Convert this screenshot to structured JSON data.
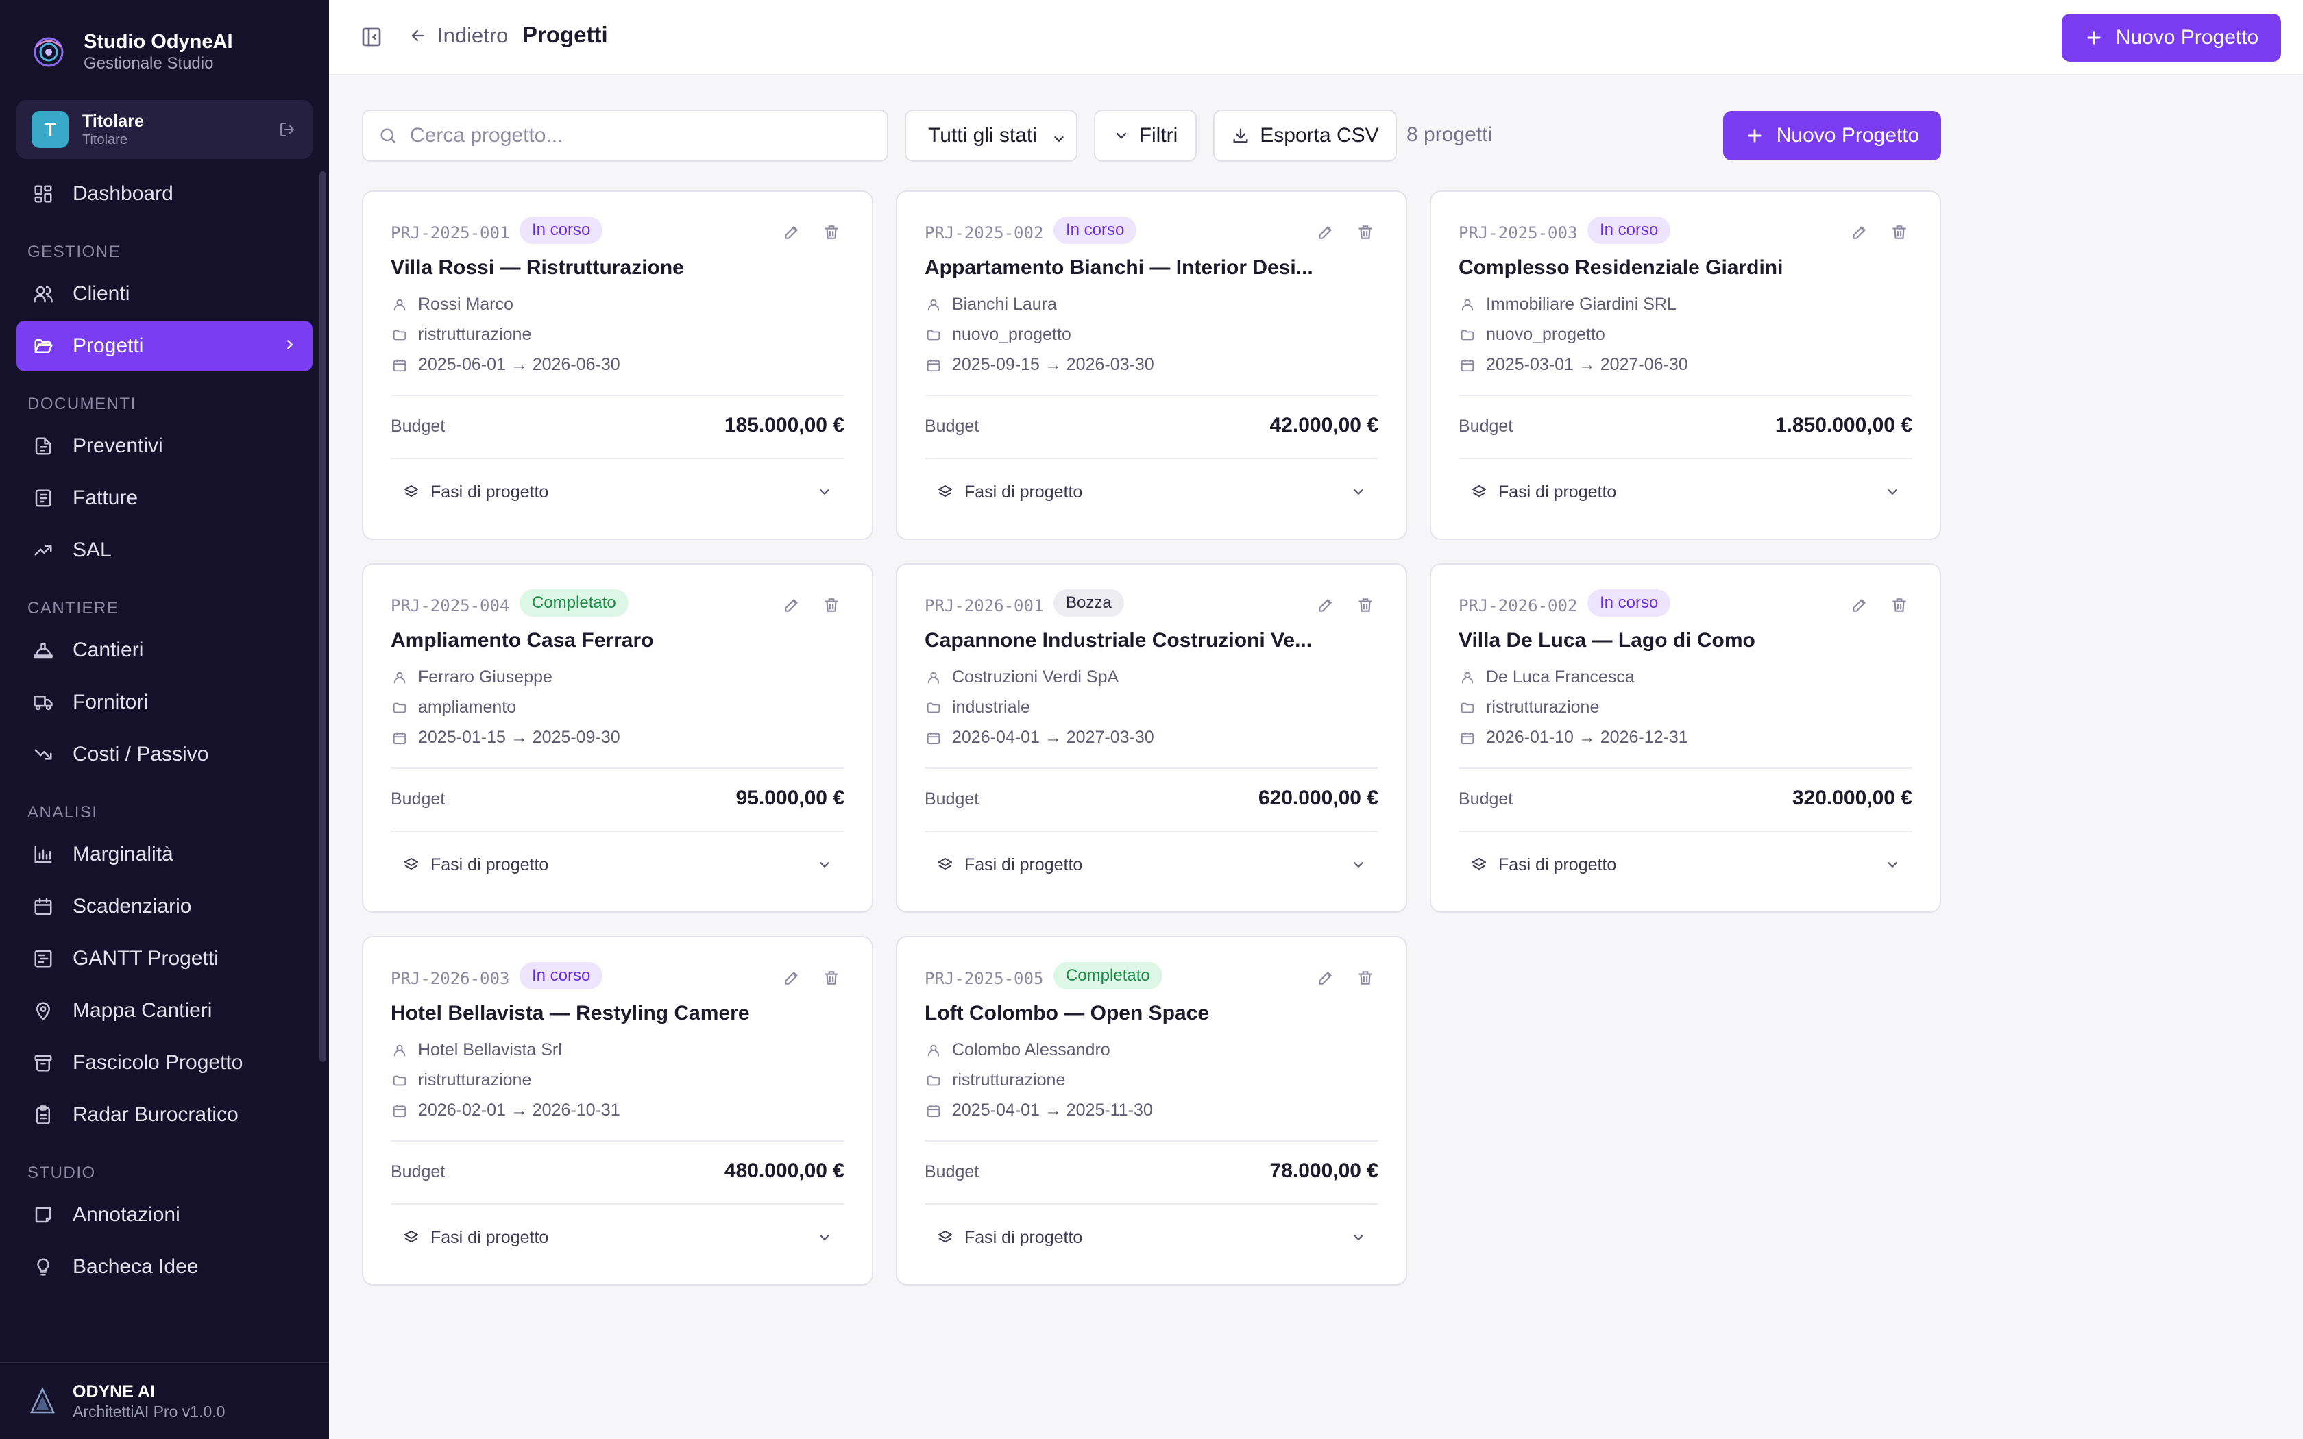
{
  "brand": {
    "name": "Studio OdyneAI",
    "subtitle": "Gestionale Studio"
  },
  "user": {
    "initial": "T",
    "name": "Titolare",
    "role": "Titolare"
  },
  "nav": {
    "dashboard": "Dashboard",
    "sections": {
      "gestione": "GESTIONE",
      "documenti": "DOCUMENTI",
      "cantieri": "CANTIERE",
      "analisi": "ANALISI",
      "studio": "STUDIO"
    },
    "items": {
      "clienti": "Clienti",
      "progetti": "Progetti",
      "preventivi": "Preventivi",
      "fatture": "Fatture",
      "sal": "SAL",
      "cantieri": "Cantieri",
      "fornitori": "Fornitori",
      "costi": "Costi / Passivo",
      "marginalita": "Marginalità",
      "scadenziario": "Scadenziario",
      "gantt": "GANTT Progetti",
      "mappa": "Mappa Cantieri",
      "fascicolo": "Fascicolo Progetto",
      "radar": "Radar Burocratico",
      "annotazioni": "Annotazioni",
      "bacheca": "Bacheca Idee"
    }
  },
  "footer": {
    "title": "ODYNE AI",
    "subtitle": "ArchitettiAI Pro v1.0.0"
  },
  "header": {
    "back_label": "Indietro",
    "title": "Progetti",
    "new_project": "Nuovo Progetto"
  },
  "toolbar": {
    "search_placeholder": "Cerca progetto...",
    "status_filter": "Tutti gli stati",
    "filters_label": "Filtri",
    "export_label": "Esporta CSV",
    "count": "8 progetti",
    "new_project": "Nuovo Progetto"
  },
  "phases_label": "Fasi di progetto",
  "budget_label": "Budget",
  "colors": {
    "accent": "#7a3cf0",
    "sidebar": "#15112b",
    "in_progress": "#6c2fe0",
    "completed": "#1f8a47"
  },
  "projects": [
    {
      "code": "PRJ-2025-001",
      "status": "In corso",
      "status_kind": "inprogress",
      "title": "Villa Rossi — Ristrutturazione",
      "client": "Rossi Marco",
      "type": "ristrutturazione",
      "dates": "2025-06-01 → 2026-06-30",
      "budget": "185.000,00 €"
    },
    {
      "code": "PRJ-2025-002",
      "status": "In corso",
      "status_kind": "inprogress",
      "title": "Appartamento Bianchi — Interior Desi...",
      "client": "Bianchi Laura",
      "type": "nuovo_progetto",
      "dates": "2025-09-15 → 2026-03-30",
      "budget": "42.000,00 €"
    },
    {
      "code": "PRJ-2025-003",
      "status": "In corso",
      "status_kind": "inprogress",
      "title": "Complesso Residenziale Giardini",
      "client": "Immobiliare Giardini SRL",
      "type": "nuovo_progetto",
      "dates": "2025-03-01 → 2027-06-30",
      "budget": "1.850.000,00 €"
    },
    {
      "code": "PRJ-2025-004",
      "status": "Completato",
      "status_kind": "done",
      "title": "Ampliamento Casa Ferraro",
      "client": "Ferraro Giuseppe",
      "type": "ampliamento",
      "dates": "2025-01-15 → 2025-09-30",
      "budget": "95.000,00 €"
    },
    {
      "code": "PRJ-2026-001",
      "status": "Bozza",
      "status_kind": "draft",
      "title": "Capannone Industriale Costruzioni Ve...",
      "client": "Costruzioni Verdi SpA",
      "type": "industriale",
      "dates": "2026-04-01 → 2027-03-30",
      "budget": "620.000,00 €"
    },
    {
      "code": "PRJ-2026-002",
      "status": "In corso",
      "status_kind": "inprogress",
      "title": "Villa De Luca — Lago di Como",
      "client": "De Luca Francesca",
      "type": "ristrutturazione",
      "dates": "2026-01-10 → 2026-12-31",
      "budget": "320.000,00 €"
    },
    {
      "code": "PRJ-2026-003",
      "status": "In corso",
      "status_kind": "inprogress",
      "title": "Hotel Bellavista — Restyling Camere",
      "client": "Hotel Bellavista Srl",
      "type": "ristrutturazione",
      "dates": "2026-02-01 → 2026-10-31",
      "budget": "480.000,00 €"
    },
    {
      "code": "PRJ-2025-005",
      "status": "Completato",
      "status_kind": "done",
      "title": "Loft Colombo — Open Space",
      "client": "Colombo Alessandro",
      "type": "ristrutturazione",
      "dates": "2025-04-01 → 2025-11-30",
      "budget": "78.000,00 €"
    }
  ]
}
